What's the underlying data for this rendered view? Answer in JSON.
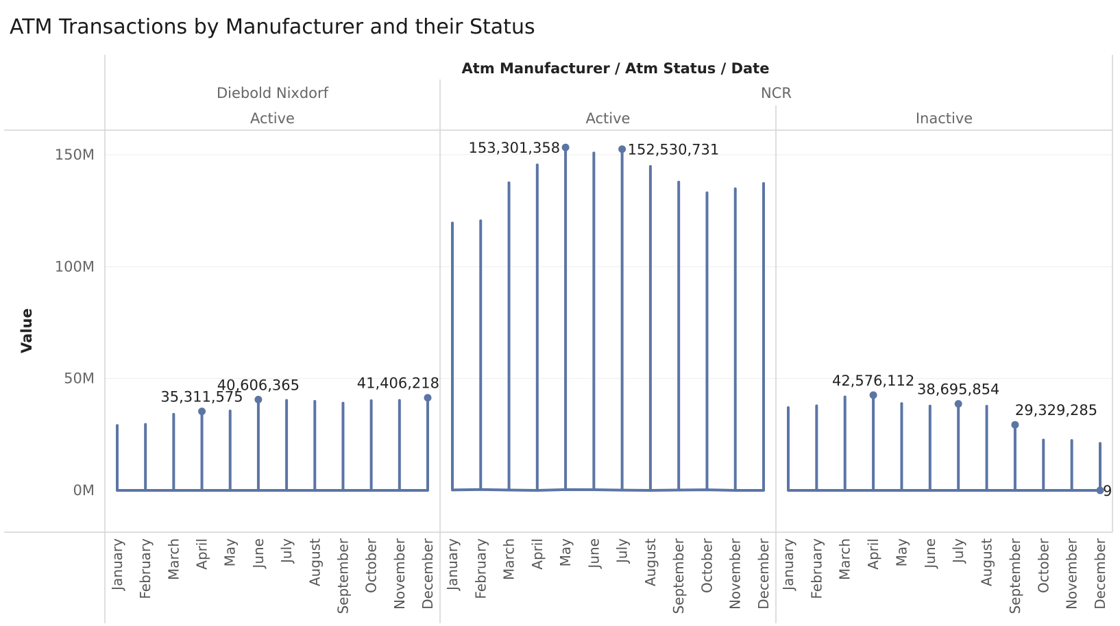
{
  "title": "ATM Transactions by Manufacturer and their Status",
  "chart_data": {
    "type": "line",
    "title": "ATM Transactions by Manufacturer and their Status",
    "column_header": "Atm Manufacturer / Atm Status / Date",
    "ylabel": "Value",
    "ylim": [
      0,
      150000000
    ],
    "y_ticks": [
      "0M",
      "50M",
      "100M",
      "150M"
    ],
    "y_tick_values": [
      0,
      50000000,
      100000000,
      150000000
    ],
    "months": [
      "January",
      "February",
      "March",
      "April",
      "May",
      "June",
      "July",
      "August",
      "September",
      "October",
      "November",
      "December"
    ],
    "manufacturers": [
      {
        "name": "Diebold Nixdorf",
        "statuses": [
          "Active"
        ]
      },
      {
        "name": "NCR",
        "statuses": [
          "Active",
          "Inactive"
        ]
      }
    ],
    "panels": [
      {
        "manufacturer": "Diebold Nixdorf",
        "status": "Active",
        "values": [
          29000000,
          29500000,
          34000000,
          35311575,
          35500000,
          40606365,
          40200000,
          39800000,
          39000000,
          40100000,
          40200000,
          41406218
        ],
        "baseline": [
          0,
          0,
          0,
          0,
          0,
          0,
          0,
          0,
          0,
          0,
          0,
          0
        ],
        "labels": [
          {
            "month_index": 3,
            "text": "35,311,575"
          },
          {
            "month_index": 5,
            "text": "40,606,365"
          },
          {
            "month_index": 11,
            "text": "41,406,218"
          }
        ]
      },
      {
        "manufacturer": "NCR",
        "status": "Active",
        "values": [
          119500000,
          120500000,
          137500000,
          145500000,
          153301358,
          150800000,
          152530731,
          144800000,
          137800000,
          133000000,
          134800000,
          137200000
        ],
        "baseline": [
          200000,
          400000,
          150000,
          0,
          350000,
          300000,
          100000,
          0,
          150000,
          250000,
          0,
          0
        ],
        "labels": [
          {
            "month_index": 4,
            "text": "153,301,358"
          },
          {
            "month_index": 6,
            "text": "152,530,731"
          }
        ]
      },
      {
        "manufacturer": "NCR",
        "status": "Inactive",
        "values": [
          37000000,
          37800000,
          41800000,
          42576112,
          38800000,
          37700000,
          38695854,
          37600000,
          29329285,
          22500000,
          22300000,
          21000000
        ],
        "baseline": [
          0,
          0,
          0,
          0,
          0,
          0,
          0,
          0,
          0,
          0,
          0,
          9
        ],
        "labels": [
          {
            "month_index": 3,
            "text": "42,576,112"
          },
          {
            "month_index": 6,
            "text": "38,695,854"
          },
          {
            "month_index": 8,
            "text": "29,329,285"
          },
          {
            "month_index": 11,
            "text": "9",
            "at_baseline": true
          }
        ]
      }
    ],
    "colors": {
      "line": "#5b75a5",
      "grid": "#ededed",
      "divider": "#d4d4d4"
    },
    "grid": true,
    "legend": "none"
  }
}
